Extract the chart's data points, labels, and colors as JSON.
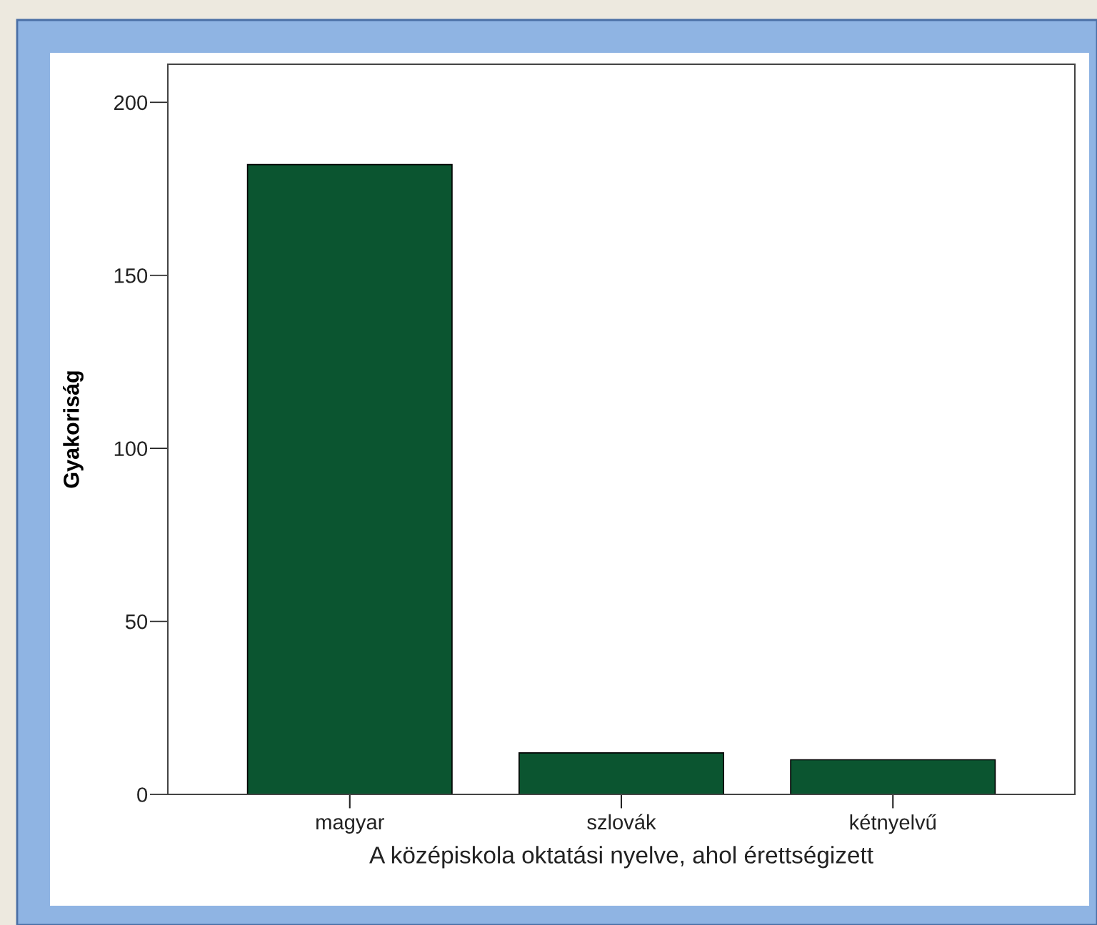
{
  "chart_data": {
    "type": "bar",
    "xlabel": "A középiskola oktatási nyelve, ahol érettségizett",
    "ylabel": "Gyakoriság",
    "categories": [
      "magyar",
      "szlovák",
      "kétnyelvű"
    ],
    "values": [
      182,
      12,
      10
    ],
    "color": "#0b5530",
    "ylim": [
      0,
      211
    ],
    "yticks": [
      0,
      50,
      100,
      150,
      200
    ],
    "grid": false,
    "legend": false
  }
}
